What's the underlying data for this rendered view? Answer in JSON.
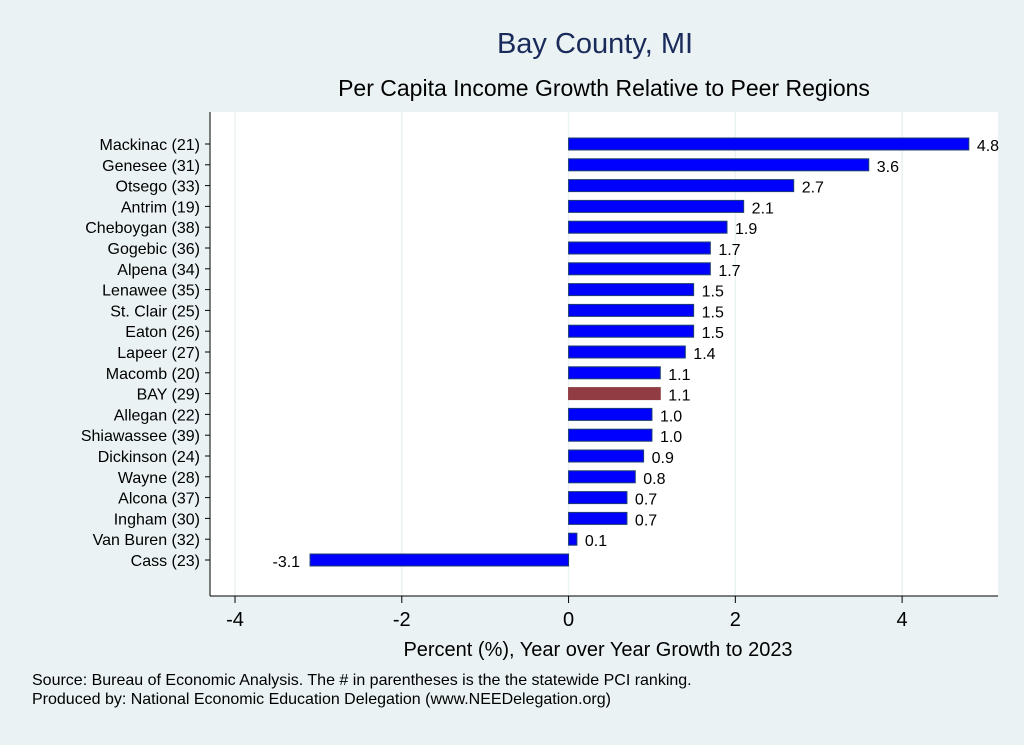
{
  "chart_data": {
    "type": "bar",
    "orientation": "horizontal",
    "title": "Bay County, MI",
    "subtitle": "Per Capita Income Growth Relative to Peer Regions",
    "xlabel": "Percent (%), Year over Year Growth to 2023",
    "ylabel": "",
    "xlim": [
      -4.3,
      5.15
    ],
    "xticks": [
      -4,
      -2,
      0,
      2,
      4
    ],
    "grid": true,
    "categories": [
      "Mackinac (21)",
      "Genesee (31)",
      "Otsego (33)",
      "Antrim (19)",
      "Cheboygan (38)",
      "Gogebic (36)",
      "Alpena (34)",
      "Lenawee (35)",
      "St. Clair (25)",
      "Eaton (26)",
      "Lapeer (27)",
      "Macomb (20)",
      "BAY (29)",
      "Allegan (22)",
      "Shiawassee (39)",
      "Dickinson (24)",
      "Wayne (28)",
      "Alcona (37)",
      "Ingham (30)",
      "Van Buren (32)",
      "Cass (23)"
    ],
    "values": [
      4.8,
      3.6,
      2.7,
      2.1,
      1.9,
      1.7,
      1.7,
      1.5,
      1.5,
      1.5,
      1.4,
      1.1,
      1.1,
      1.0,
      1.0,
      0.9,
      0.8,
      0.7,
      0.7,
      0.1,
      -3.1
    ],
    "labels": [
      "4.8",
      "3.6",
      "2.7",
      "2.1",
      "1.9",
      "1.7",
      "1.7",
      "1.5",
      "1.5",
      "1.5",
      "1.4",
      "1.1",
      "1.1",
      "1.0",
      "1.0",
      "0.9",
      "0.8",
      "0.7",
      "0.7",
      "0.1",
      "-3.1"
    ],
    "highlight": "BAY (29)",
    "colors": {
      "bar": "#0000ff",
      "highlight": "#903c42",
      "outline": "#1a3f6f",
      "background": "#eaf2f3",
      "plot": "#ffffff"
    }
  },
  "notes": {
    "source": "Source: Bureau of Economic Analysis. The # in parentheses is the the statewide PCI ranking.",
    "produced": "Produced by: National Economic Education Delegation (www.NEEDelegation.org)"
  }
}
